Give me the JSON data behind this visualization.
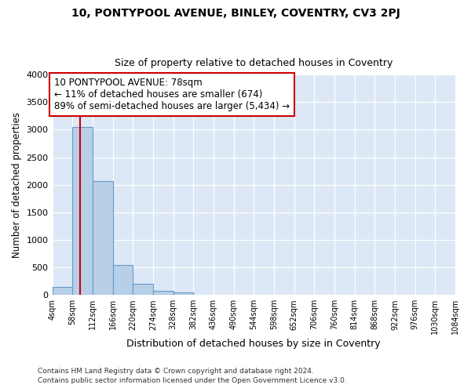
{
  "title1": "10, PONTYPOOL AVENUE, BINLEY, COVENTRY, CV3 2PJ",
  "title2": "Size of property relative to detached houses in Coventry",
  "xlabel": "Distribution of detached houses by size in Coventry",
  "ylabel": "Number of detached properties",
  "annotation_line1": "10 PONTYPOOL AVENUE: 78sqm",
  "annotation_line2": "← 11% of detached houses are smaller (674)",
  "annotation_line3": "89% of semi-detached houses are larger (5,434) →",
  "footer1": "Contains HM Land Registry data © Crown copyright and database right 2024.",
  "footer2": "Contains public sector information licensed under the Open Government Licence v3.0.",
  "bin_edges": [
    4,
    58,
    112,
    166,
    220,
    274,
    328,
    382,
    436,
    490,
    544,
    598,
    652,
    706,
    760,
    814,
    868,
    922,
    976,
    1030,
    1084
  ],
  "bin_counts": [
    150,
    3050,
    2070,
    550,
    210,
    80,
    50,
    0,
    0,
    0,
    0,
    0,
    0,
    0,
    0,
    0,
    0,
    0,
    0,
    0
  ],
  "bar_color": "#b8cfe8",
  "bar_edge_color": "#6699cc",
  "vline_x": 78,
  "vline_color": "#cc0000",
  "annotation_box_color": "white",
  "annotation_box_edge": "#cc0000",
  "ylim": [
    0,
    4000
  ],
  "background_color": "#dce8f5"
}
